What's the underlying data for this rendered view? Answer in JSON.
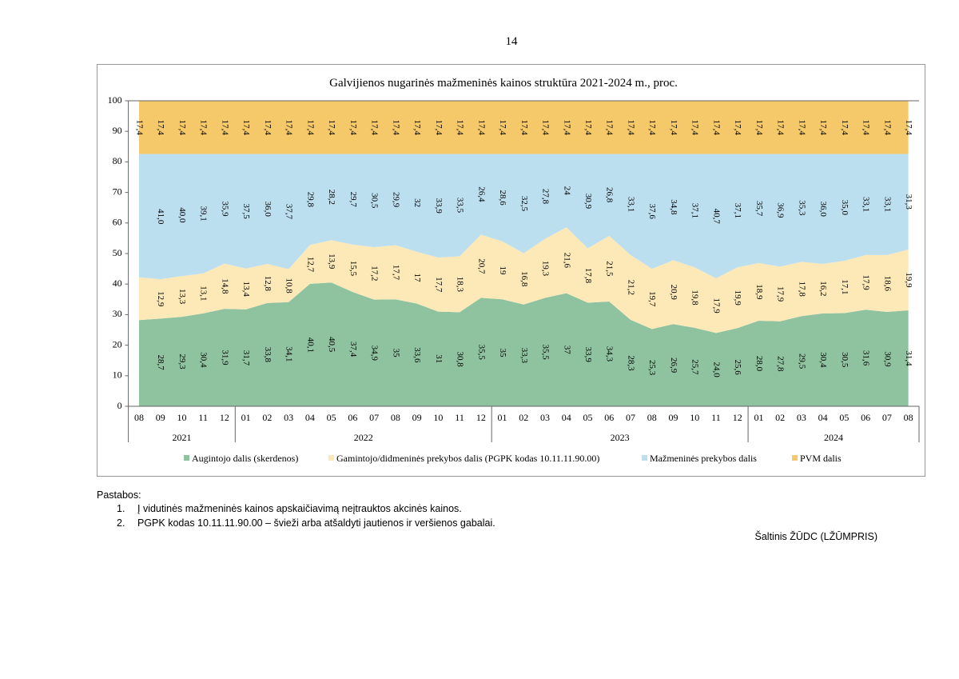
{
  "page_number": "14",
  "chart_data": {
    "type": "stacked_area",
    "title": "Galvijienos nugarinės mažmeninės kainos struktūra 2021-2024 m., proc.",
    "categories": [
      "08",
      "09",
      "10",
      "11",
      "12",
      "01",
      "02",
      "03",
      "04",
      "05",
      "06",
      "07",
      "08",
      "09",
      "10",
      "11",
      "12",
      "01",
      "02",
      "03",
      "04",
      "05",
      "06",
      "07",
      "08",
      "09",
      "10",
      "11",
      "12",
      "01",
      "02",
      "03",
      "04",
      "05",
      "06",
      "07",
      "08"
    ],
    "years": [
      "2021",
      "2022",
      "2023",
      "2024"
    ],
    "ylim": [
      0,
      100
    ],
    "yticks": [
      0,
      10,
      20,
      30,
      40,
      50,
      60,
      70,
      80,
      90,
      100
    ],
    "grid": false,
    "legend": "bottom",
    "series": [
      {
        "name": "Augintojo dalis (skerdenos)",
        "color": "#8fc3a0",
        "values": [
          28.2,
          28.7,
          29.3,
          30.4,
          31.9,
          31.7,
          33.8,
          34.1,
          40.1,
          40.5,
          37.4,
          34.9,
          35,
          33.6,
          31,
          30.8,
          35.5,
          35,
          33.3,
          35.5,
          37,
          33.9,
          34.3,
          28.3,
          25.3,
          26.9,
          25.7,
          24.0,
          25.6,
          28.0,
          27.8,
          29.5,
          30.4,
          30.5,
          31.6,
          30.9,
          31.4
        ],
        "value_labels": [
          null,
          "28,7",
          "29,3",
          "30,4",
          "31,9",
          "31,7",
          "33,8",
          "34,1",
          "40,1",
          "40,5",
          "37,4",
          "34,9",
          "35",
          "33,6",
          "31",
          "30,8",
          "35,5",
          "35",
          "33,3",
          "35,5",
          "37",
          "33,9",
          "34,3",
          "28,3",
          "25,3",
          "26,9",
          "25,7",
          "24,0",
          "25,6",
          "28,0",
          "27,8",
          "29,5",
          "30,4",
          "30,5",
          "31,6",
          "30,9",
          "31,4"
        ]
      },
      {
        "name": "Gamintojo/didmeninės prekybos dalis (PGPK kodas 10.11.11.90.00)",
        "color": "#fde9b8",
        "values": [
          14.0,
          12.9,
          13.3,
          13.1,
          14.8,
          13.4,
          12.8,
          10.8,
          12.7,
          13.9,
          15.5,
          17.2,
          17.7,
          17,
          17.7,
          18.3,
          20.7,
          19,
          16.8,
          19.3,
          21.6,
          17.8,
          21.5,
          21.2,
          19.7,
          20.9,
          19.8,
          17.9,
          19.9,
          18.9,
          17.9,
          17.8,
          16.2,
          17.1,
          17.9,
          18.6,
          19.9
        ],
        "value_labels": [
          null,
          "12,9",
          "13,3",
          "13,1",
          "14,8",
          "13,4",
          "12,8",
          "10,8",
          "12,7",
          "13,9",
          "15,5",
          "17,2",
          "17,7",
          "17",
          "17,7",
          "18,3",
          "20,7",
          "19",
          "16,8",
          "19,3",
          "21,6",
          "17,8",
          "21,5",
          "21,2",
          "19,7",
          "20,9",
          "19,8",
          "17,9",
          "19,9",
          "18,9",
          "17,9",
          "17,8",
          "16,2",
          "17,1",
          "17,9",
          "18,6",
          "19,9"
        ]
      },
      {
        "name": "Mažmeninės prekybos dalis",
        "color": "#bcdff0",
        "values": [
          40.4,
          41.0,
          40.0,
          39.1,
          35.9,
          37.5,
          36.0,
          37.7,
          29.8,
          28.2,
          29.7,
          30.5,
          29.9,
          32,
          33.9,
          33.5,
          26.4,
          28.6,
          32.5,
          27.8,
          24,
          30.9,
          26.8,
          33.1,
          37.6,
          34.8,
          37.1,
          40.7,
          37.1,
          35.7,
          36.9,
          35.3,
          36.0,
          35.0,
          33.1,
          33.1,
          31.3
        ],
        "value_labels": [
          null,
          "41,0",
          "40,0",
          "39,1",
          "35,9",
          "37,5",
          "36,0",
          "37,7",
          "29,8",
          "28,2",
          "29,7",
          "30,5",
          "29,9",
          "32",
          "33,9",
          "33,5",
          "26,4",
          "28,6",
          "32,5",
          "27,8",
          "24",
          "30,9",
          "26,8",
          "33,1",
          "37,6",
          "34,8",
          "37,1",
          "40,7",
          "37,1",
          "35,7",
          "36,9",
          "35,3",
          "36,0",
          "35,0",
          "33,1",
          "33,1",
          "31,3"
        ]
      },
      {
        "name": "PVM dalis",
        "color": "#f5c96a",
        "values": [
          17.4,
          17.4,
          17.4,
          17.4,
          17.4,
          17.4,
          17.4,
          17.4,
          17.4,
          17.4,
          17.4,
          17.4,
          17.4,
          17.4,
          17.4,
          17.4,
          17.4,
          17.4,
          17.4,
          17.4,
          17.4,
          17.4,
          17.4,
          17.4,
          17.4,
          17.4,
          17.4,
          17.4,
          17.4,
          17.4,
          17.4,
          17.4,
          17.4,
          17.4,
          17.4,
          17.4,
          17.4
        ],
        "value_labels": [
          "17,4",
          "17,4",
          "17,4",
          "17,4",
          "17,4",
          "17,4",
          "17,4",
          "17,4",
          "17,4",
          "17,4",
          "17,4",
          "17,4",
          "17,4",
          "17,4",
          "17,4",
          "17,4",
          "17,4",
          "17,4",
          "17,4",
          "17,4",
          "17,4",
          "17,4",
          "17,4",
          "17,4",
          "17,4",
          "17,4",
          "17,4",
          "17,4",
          "17,4",
          "17,4",
          "17,4",
          "17,4",
          "17,4",
          "17,4",
          "17,4",
          "17,4",
          "17,4"
        ]
      }
    ]
  },
  "notes": {
    "heading": "Pastabos:",
    "items": [
      {
        "number": "1.",
        "text": "Į vidutinės mažmeninės kainos apskaičiavimą neįtrauktos akcinės kainos."
      },
      {
        "number": "2.",
        "text": "PGPK kodas 10.11.11.90.00 – švieži arba atšaldyti jautienos ir veršienos gabalai."
      }
    ]
  },
  "source": "Šaltinis ŽŪDC (LŽŪMPRIS)"
}
